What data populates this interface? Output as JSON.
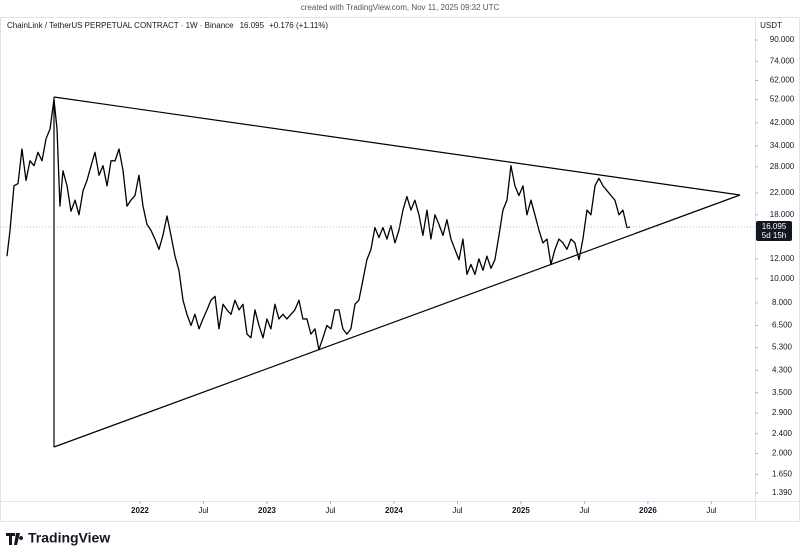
{
  "header": "created with TradingView.com, Nov 11, 2025 09:32 UTC",
  "chart_data": {
    "type": "line",
    "title": "ChainLink / TetherUS PERPETUAL CONTRACT · 1W · Binance",
    "change": "+0.176 (+1.11%)",
    "currency": "USDT",
    "countdown": "5d 15h",
    "brand": "TradingView",
    "color": "#000000",
    "log_scale": true,
    "x": [
      2020.953,
      2020.977,
      2021.008,
      2021.04,
      2021.071,
      2021.103,
      2021.134,
      2021.166,
      2021.197,
      2021.229,
      2021.26,
      2021.292,
      2021.323,
      2021.347,
      2021.37,
      2021.394,
      2021.426,
      2021.457,
      2021.489,
      2021.52,
      2021.552,
      2021.583,
      2021.615,
      2021.646,
      2021.678,
      2021.709,
      2021.741,
      2021.772,
      2021.804,
      2021.835,
      2021.867,
      2021.898,
      2021.929,
      2021.961,
      2021.992,
      2022.024,
      2022.055,
      2022.087,
      2022.118,
      2022.15,
      2022.181,
      2022.213,
      2022.244,
      2022.276,
      2022.307,
      2022.339,
      2022.37,
      2022.402,
      2022.433,
      2022.465,
      2022.496,
      2022.528,
      2022.559,
      2022.591,
      2022.622,
      2022.654,
      2022.685,
      2022.717,
      2022.748,
      2022.78,
      2022.811,
      2022.843,
      2022.874,
      2022.906,
      2022.937,
      2022.969,
      2023.0,
      2023.031,
      2023.063,
      2023.094,
      2023.126,
      2023.157,
      2023.189,
      2023.22,
      2023.252,
      2023.283,
      2023.315,
      2023.346,
      2023.378,
      2023.409,
      2023.441,
      2023.472,
      2023.504,
      2023.535,
      2023.567,
      2023.598,
      2023.63,
      2023.661,
      2023.693,
      2023.724,
      2023.756,
      2023.787,
      2023.819,
      2023.85,
      2023.882,
      2023.913,
      2023.945,
      2023.976,
      2024.008,
      2024.039,
      2024.071,
      2024.102,
      2024.134,
      2024.165,
      2024.197,
      2024.228,
      2024.26,
      2024.291,
      2024.323,
      2024.354,
      2024.386,
      2024.417,
      2024.449,
      2024.48,
      2024.512,
      2024.543,
      2024.575,
      2024.606,
      2024.638,
      2024.669,
      2024.701,
      2024.732,
      2024.764,
      2024.795,
      2024.827,
      2024.858,
      2024.89,
      2024.921,
      2024.953,
      2024.984,
      2025.016,
      2025.047,
      2025.079,
      2025.11,
      2025.142,
      2025.173,
      2025.205,
      2025.236,
      2025.268,
      2025.299,
      2025.331,
      2025.362,
      2025.394,
      2025.425,
      2025.457,
      2025.488,
      2025.52,
      2025.551,
      2025.583,
      2025.614,
      2025.646,
      2025.677,
      2025.709,
      2025.74,
      2025.772,
      2025.803,
      2025.835,
      2025.858
    ],
    "values": [
      12.3,
      15.6,
      23.5,
      24,
      33,
      24.7,
      29.6,
      28.3,
      32,
      29.6,
      36.2,
      39.7,
      52,
      39.7,
      19.5,
      27,
      23.5,
      18.6,
      20.6,
      18,
      22.5,
      24.7,
      28.3,
      32,
      25.9,
      28.3,
      23.5,
      29.6,
      29.6,
      33,
      27,
      19.5,
      20.6,
      21.5,
      25.9,
      19.5,
      16.5,
      15.6,
      14.4,
      13.1,
      14.9,
      17.8,
      14.9,
      12.3,
      10.8,
      8.2,
      7.2,
      6.5,
      7.2,
      6.3,
      6.9,
      7.5,
      8.2,
      8.5,
      6.3,
      7.9,
      7.5,
      7.2,
      8.2,
      7.5,
      7.9,
      6.0,
      5.8,
      7.5,
      6.5,
      5.8,
      6.9,
      6.3,
      7.9,
      6.9,
      7.2,
      6.9,
      7.2,
      7.5,
      8.2,
      6.9,
      6.9,
      6.0,
      6.3,
      5.2,
      5.8,
      6.5,
      6.3,
      7.5,
      7.5,
      6.3,
      6.0,
      6.3,
      7.9,
      8.2,
      9.9,
      11.9,
      13.1,
      16.0,
      14.6,
      16.0,
      14.4,
      16.3,
      13.9,
      15.6,
      18.8,
      21.3,
      18.8,
      20.6,
      18,
      14.9,
      18.8,
      14.4,
      18,
      16.5,
      14.9,
      17.2,
      14.4,
      13.1,
      11.9,
      14.4,
      10.4,
      11.4,
      10.4,
      12.0,
      10.8,
      12.3,
      11.0,
      11.9,
      14.9,
      18.8,
      20.6,
      28.3,
      23.5,
      21.5,
      23.5,
      18,
      20.6,
      18,
      15.6,
      13.9,
      14.4,
      11.4,
      13.1,
      14.4,
      13.9,
      13.1,
      14.4,
      13.9,
      11.9,
      14.4,
      18.8,
      18,
      23.5,
      25.2,
      23.5,
      22.5,
      21.5,
      20.6,
      18,
      18.8,
      16.0,
      16.095
    ],
    "xlim": [
      2020.898,
      2026.843
    ],
    "xticks": [
      {
        "value": 2022,
        "label": "2022"
      },
      {
        "value": 2022.5,
        "label": "Jul"
      },
      {
        "value": 2023,
        "label": "2023"
      },
      {
        "value": 2023.5,
        "label": "Jul"
      },
      {
        "value": 2024,
        "label": "2024"
      },
      {
        "value": 2024.5,
        "label": "Jul"
      },
      {
        "value": 2025,
        "label": "2025"
      },
      {
        "value": 2025.5,
        "label": "Jul"
      },
      {
        "value": 2026,
        "label": "2026"
      },
      {
        "value": 2026.5,
        "label": "Jul"
      }
    ],
    "ylim": [
      1.303,
      98.7
    ],
    "yticks": [
      {
        "value": 90,
        "label": "90.000"
      },
      {
        "value": 74,
        "label": "74.000"
      },
      {
        "value": 62,
        "label": "62.000"
      },
      {
        "value": 52,
        "label": "52.000"
      },
      {
        "value": 42,
        "label": "42.000"
      },
      {
        "value": 34,
        "label": "34.000"
      },
      {
        "value": 28,
        "label": "28.000"
      },
      {
        "value": 22,
        "label": "22.000"
      },
      {
        "value": 18,
        "label": "18.000"
      },
      {
        "value": 12,
        "label": "12.000"
      },
      {
        "value": 10,
        "label": "10.000"
      },
      {
        "value": 8,
        "label": "8.000"
      },
      {
        "value": 6.5,
        "label": "6.500"
      },
      {
        "value": 5.3,
        "label": "5.300"
      },
      {
        "value": 4.3,
        "label": "4.300"
      },
      {
        "value": 3.5,
        "label": "3.500"
      },
      {
        "value": 2.9,
        "label": "2.900"
      },
      {
        "value": 2.4,
        "label": "2.400"
      },
      {
        "value": 2,
        "label": "2.000"
      },
      {
        "value": 1.65,
        "label": "1.650"
      },
      {
        "value": 1.39,
        "label": "1.390"
      }
    ]
  }
}
